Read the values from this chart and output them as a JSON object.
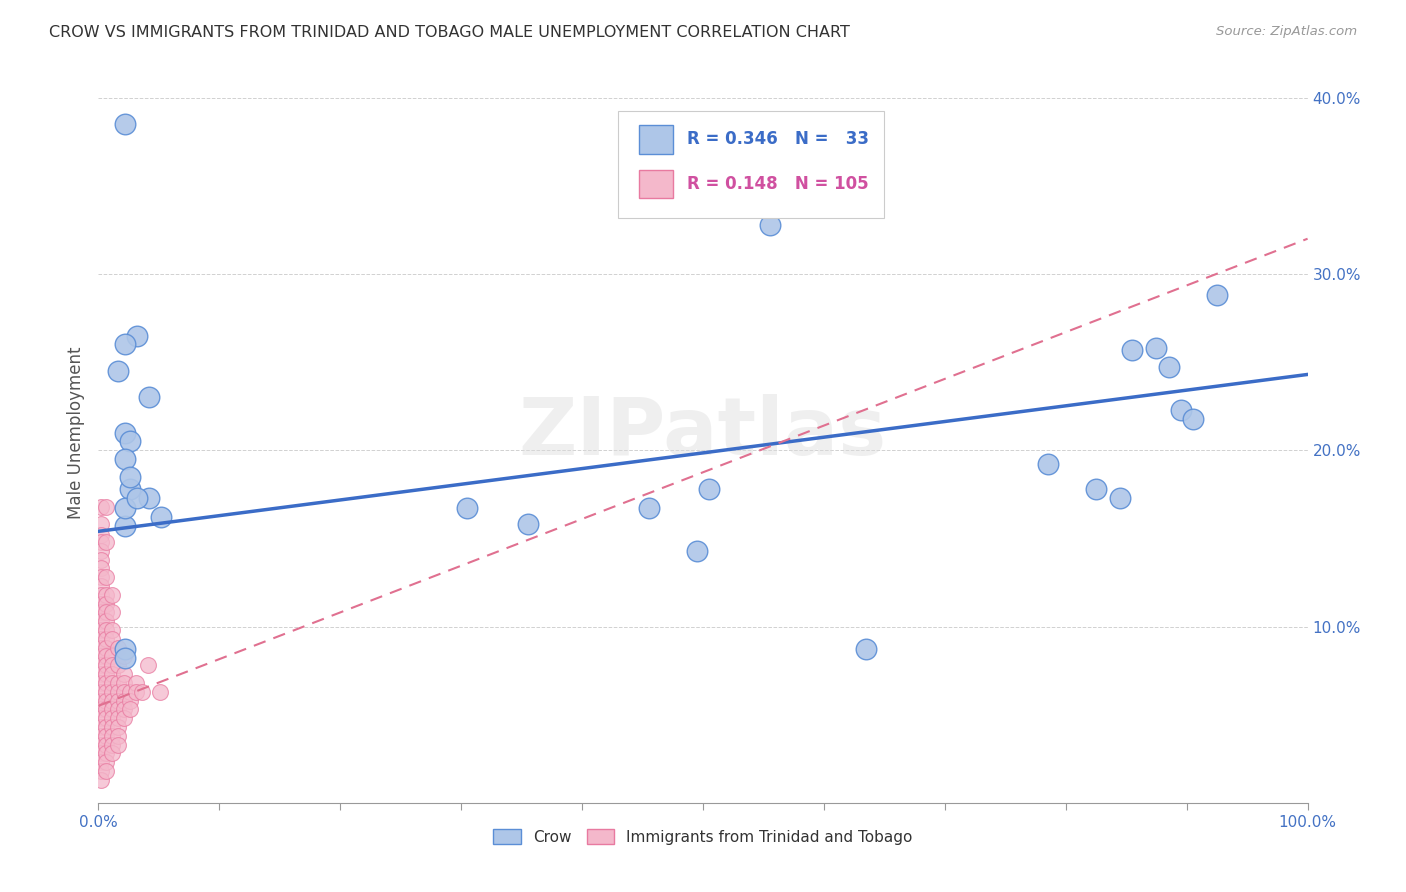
{
  "title": "CROW VS IMMIGRANTS FROM TRINIDAD AND TOBAGO MALE UNEMPLOYMENT CORRELATION CHART",
  "source": "Source: ZipAtlas.com",
  "ylabel": "Male Unemployment",
  "xlim": [
    0,
    1.0
  ],
  "ylim": [
    0,
    0.42
  ],
  "xticks": [
    0.0,
    0.1,
    0.2,
    0.3,
    0.4,
    0.5,
    0.6,
    0.7,
    0.8,
    0.9,
    1.0
  ],
  "xticklabels_left": "0.0%",
  "xticklabels_mid": "",
  "xticklabels_right": "100.0%",
  "yticks": [
    0.0,
    0.1,
    0.2,
    0.3,
    0.4
  ],
  "yticklabels": [
    "",
    "10.0%",
    "20.0%",
    "30.0%",
    "40.0%"
  ],
  "color_crow": "#aec6e8",
  "color_crow_edge": "#5b8ed6",
  "color_tt": "#f4b8cb",
  "color_tt_edge": "#e87aa0",
  "color_crow_line": "#3b6cc7",
  "color_tt_line": "#e07090",
  "background_color": "#ffffff",
  "watermark": "ZIPatlas",
  "crow_points": [
    [
      0.022,
      0.385
    ],
    [
      0.032,
      0.265
    ],
    [
      0.022,
      0.26
    ],
    [
      0.016,
      0.245
    ],
    [
      0.022,
      0.21
    ],
    [
      0.026,
      0.205
    ],
    [
      0.022,
      0.195
    ],
    [
      0.042,
      0.23
    ],
    [
      0.026,
      0.178
    ],
    [
      0.026,
      0.185
    ],
    [
      0.022,
      0.157
    ],
    [
      0.042,
      0.173
    ],
    [
      0.022,
      0.167
    ],
    [
      0.032,
      0.173
    ],
    [
      0.052,
      0.162
    ],
    [
      0.305,
      0.167
    ],
    [
      0.355,
      0.158
    ],
    [
      0.455,
      0.167
    ],
    [
      0.495,
      0.143
    ],
    [
      0.505,
      0.178
    ],
    [
      0.555,
      0.328
    ],
    [
      0.785,
      0.192
    ],
    [
      0.825,
      0.178
    ],
    [
      0.845,
      0.173
    ],
    [
      0.855,
      0.257
    ],
    [
      0.875,
      0.258
    ],
    [
      0.885,
      0.247
    ],
    [
      0.895,
      0.223
    ],
    [
      0.905,
      0.218
    ],
    [
      0.925,
      0.288
    ],
    [
      0.635,
      0.087
    ],
    [
      0.022,
      0.087
    ],
    [
      0.022,
      0.082
    ]
  ],
  "tt_points": [
    [
      0.002,
      0.168
    ],
    [
      0.002,
      0.158
    ],
    [
      0.002,
      0.152
    ],
    [
      0.002,
      0.148
    ],
    [
      0.002,
      0.143
    ],
    [
      0.002,
      0.138
    ],
    [
      0.002,
      0.133
    ],
    [
      0.002,
      0.128
    ],
    [
      0.002,
      0.123
    ],
    [
      0.002,
      0.118
    ],
    [
      0.002,
      0.113
    ],
    [
      0.002,
      0.108
    ],
    [
      0.002,
      0.103
    ],
    [
      0.002,
      0.098
    ],
    [
      0.002,
      0.093
    ],
    [
      0.002,
      0.088
    ],
    [
      0.002,
      0.083
    ],
    [
      0.002,
      0.078
    ],
    [
      0.002,
      0.073
    ],
    [
      0.002,
      0.068
    ],
    [
      0.002,
      0.063
    ],
    [
      0.002,
      0.058
    ],
    [
      0.002,
      0.053
    ],
    [
      0.002,
      0.048
    ],
    [
      0.002,
      0.043
    ],
    [
      0.002,
      0.038
    ],
    [
      0.002,
      0.033
    ],
    [
      0.002,
      0.028
    ],
    [
      0.002,
      0.023
    ],
    [
      0.002,
      0.018
    ],
    [
      0.002,
      0.013
    ],
    [
      0.006,
      0.168
    ],
    [
      0.006,
      0.148
    ],
    [
      0.006,
      0.128
    ],
    [
      0.006,
      0.118
    ],
    [
      0.006,
      0.113
    ],
    [
      0.006,
      0.108
    ],
    [
      0.006,
      0.103
    ],
    [
      0.006,
      0.098
    ],
    [
      0.006,
      0.093
    ],
    [
      0.006,
      0.088
    ],
    [
      0.006,
      0.083
    ],
    [
      0.006,
      0.078
    ],
    [
      0.006,
      0.073
    ],
    [
      0.006,
      0.068
    ],
    [
      0.006,
      0.063
    ],
    [
      0.006,
      0.058
    ],
    [
      0.006,
      0.053
    ],
    [
      0.006,
      0.048
    ],
    [
      0.006,
      0.043
    ],
    [
      0.006,
      0.038
    ],
    [
      0.006,
      0.033
    ],
    [
      0.006,
      0.028
    ],
    [
      0.006,
      0.023
    ],
    [
      0.006,
      0.018
    ],
    [
      0.011,
      0.118
    ],
    [
      0.011,
      0.108
    ],
    [
      0.011,
      0.098
    ],
    [
      0.011,
      0.093
    ],
    [
      0.011,
      0.083
    ],
    [
      0.011,
      0.078
    ],
    [
      0.011,
      0.073
    ],
    [
      0.011,
      0.068
    ],
    [
      0.011,
      0.063
    ],
    [
      0.011,
      0.058
    ],
    [
      0.011,
      0.053
    ],
    [
      0.011,
      0.048
    ],
    [
      0.011,
      0.043
    ],
    [
      0.011,
      0.038
    ],
    [
      0.011,
      0.033
    ],
    [
      0.011,
      0.028
    ],
    [
      0.016,
      0.088
    ],
    [
      0.016,
      0.078
    ],
    [
      0.016,
      0.068
    ],
    [
      0.016,
      0.063
    ],
    [
      0.016,
      0.058
    ],
    [
      0.016,
      0.053
    ],
    [
      0.016,
      0.048
    ],
    [
      0.016,
      0.043
    ],
    [
      0.016,
      0.038
    ],
    [
      0.016,
      0.033
    ],
    [
      0.021,
      0.083
    ],
    [
      0.021,
      0.073
    ],
    [
      0.021,
      0.068
    ],
    [
      0.021,
      0.063
    ],
    [
      0.021,
      0.058
    ],
    [
      0.021,
      0.053
    ],
    [
      0.021,
      0.048
    ],
    [
      0.026,
      0.063
    ],
    [
      0.026,
      0.058
    ],
    [
      0.026,
      0.053
    ],
    [
      0.031,
      0.068
    ],
    [
      0.031,
      0.063
    ],
    [
      0.036,
      0.063
    ],
    [
      0.041,
      0.078
    ],
    [
      0.051,
      0.063
    ]
  ],
  "crow_line_x": [
    0.0,
    1.0
  ],
  "crow_line_y": [
    0.154,
    0.243
  ],
  "tt_line_x": [
    0.0,
    1.0
  ],
  "tt_line_y": [
    0.055,
    0.32
  ]
}
